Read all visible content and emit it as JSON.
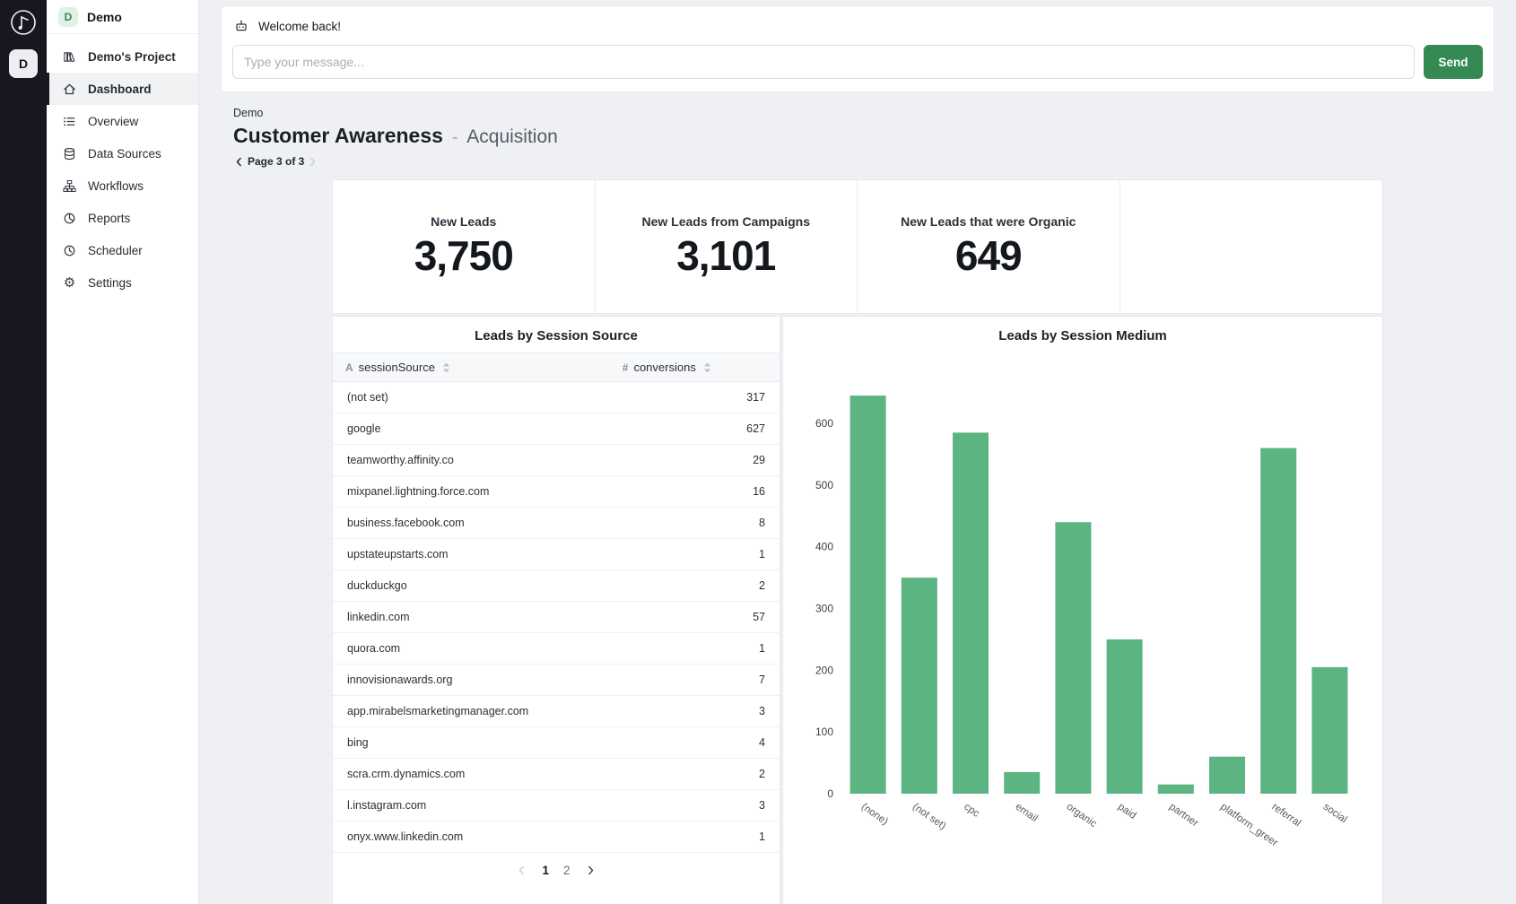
{
  "rail": {
    "logo_icon": "logo",
    "workspace_initial": "D"
  },
  "sidebar": {
    "workspace": {
      "initial": "D",
      "name": "Demo"
    },
    "items": [
      {
        "label": "Demo's Project",
        "icon": "library",
        "active": false
      },
      {
        "label": "Dashboard",
        "icon": "home",
        "active": true
      },
      {
        "label": "Overview",
        "icon": "list",
        "active": false
      },
      {
        "label": "Data Sources",
        "icon": "database",
        "active": false
      },
      {
        "label": "Workflows",
        "icon": "workflow",
        "active": false
      },
      {
        "label": "Reports",
        "icon": "pie",
        "active": false
      },
      {
        "label": "Scheduler",
        "icon": "clock",
        "active": false
      },
      {
        "label": "Settings",
        "icon": "gear",
        "active": false
      }
    ]
  },
  "chat": {
    "welcome_message": "Welcome back!",
    "input_placeholder": "Type your message...",
    "send_label": "Send",
    "bot_icon": "bot"
  },
  "page": {
    "breadcrumb": "Demo",
    "title": "Customer Awareness",
    "title_separator": "-",
    "subtitle": "Acquisition",
    "page_indicator": "Page 3 of 3"
  },
  "stats": [
    {
      "label": "New Leads",
      "value": "3,750"
    },
    {
      "label": "New Leads from Campaigns",
      "value": "3,101"
    },
    {
      "label": "New Leads that were Organic",
      "value": "649"
    }
  ],
  "table": {
    "title": "Leads by Session Source",
    "columns": [
      {
        "type_glyph": "A",
        "label": "sessionSource"
      },
      {
        "type_glyph": "#",
        "label": "conversions"
      }
    ],
    "rows": [
      {
        "source": "(not set)",
        "conversions": "317"
      },
      {
        "source": "google",
        "conversions": "627"
      },
      {
        "source": "teamworthy.affinity.co",
        "conversions": "29"
      },
      {
        "source": "mixpanel.lightning.force.com",
        "conversions": "16"
      },
      {
        "source": "business.facebook.com",
        "conversions": "8"
      },
      {
        "source": "upstateupstarts.com",
        "conversions": "1"
      },
      {
        "source": "duckduckgo",
        "conversions": "2"
      },
      {
        "source": "linkedin.com",
        "conversions": "57"
      },
      {
        "source": "quora.com",
        "conversions": "1"
      },
      {
        "source": "innovisionawards.org",
        "conversions": "7"
      },
      {
        "source": "app.mirabelsmarketingmanager.com",
        "conversions": "3"
      },
      {
        "source": "bing",
        "conversions": "4"
      },
      {
        "source": "scra.crm.dynamics.com",
        "conversions": "2"
      },
      {
        "source": "l.instagram.com",
        "conversions": "3"
      },
      {
        "source": "onyx.www.linkedin.com",
        "conversions": "1"
      }
    ],
    "pagination": {
      "pages": [
        "1",
        "2"
      ],
      "current": "1"
    }
  },
  "chart_data": {
    "type": "bar",
    "title": "Leads by Session Medium",
    "categories": [
      "(none)",
      "(not set)",
      "cpc",
      "email",
      "organic",
      "paid",
      "partner",
      "platform_greer",
      "referral",
      "social"
    ],
    "values": [
      645,
      350,
      585,
      35,
      440,
      250,
      15,
      60,
      560,
      205
    ],
    "xlabel": "",
    "ylabel": "",
    "yticks": [
      0,
      100,
      200,
      300,
      400,
      500,
      600
    ],
    "ylim": [
      0,
      680
    ],
    "grid": false,
    "legend_position": "none",
    "bar_color": "#5cb482"
  },
  "colors": {
    "accent_green": "#358a54",
    "bar_green": "#5cb482",
    "rail_dark": "#17171f"
  }
}
